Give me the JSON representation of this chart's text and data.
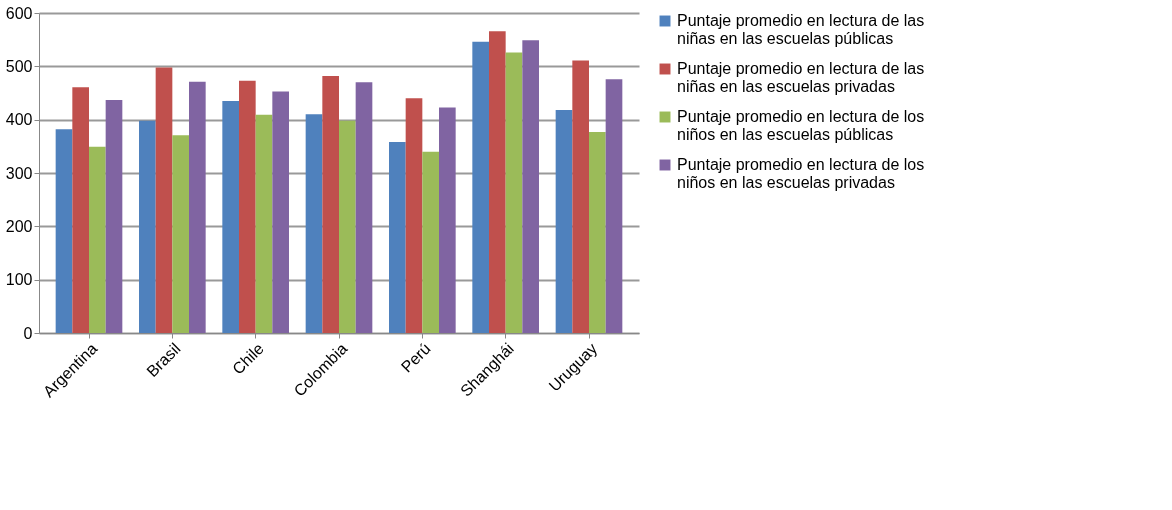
{
  "chart_data": {
    "type": "bar",
    "categories": [
      "Argentina",
      "Brasil",
      "Chile",
      "Colombia",
      "Perú",
      "Shanghái",
      "Uruguay"
    ],
    "series": [
      {
        "name": "Puntaje promedio en lectura de las niñas en las escuelas públicas",
        "color": "#4f81bd",
        "values": [
          382,
          398,
          435,
          410,
          358,
          546,
          418
        ]
      },
      {
        "name": "Puntaje promedio en lectura de las niñas en las escuelas privadas",
        "color": "#c0504d",
        "values": [
          461,
          498,
          473,
          482,
          440,
          566,
          511
        ]
      },
      {
        "name": "Puntaje promedio en lectura de los niños en las escuelas públicas",
        "color": "#9bbb59",
        "values": [
          349,
          371,
          409,
          398,
          340,
          526,
          377
        ]
      },
      {
        "name": "Puntaje promedio en lectura de los niños en las escuelas privadas",
        "color": "#8064a2",
        "values": [
          437,
          471,
          453,
          470,
          423,
          549,
          476
        ]
      }
    ],
    "ylim": [
      0,
      600
    ],
    "yticks": [
      0,
      100,
      200,
      300,
      400,
      500,
      600
    ],
    "grid": "y",
    "legend": "right"
  }
}
